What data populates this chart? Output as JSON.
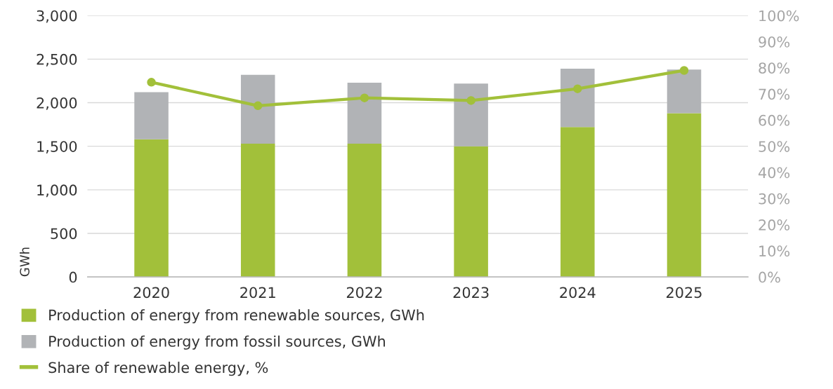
{
  "chart_data": {
    "type": "bar",
    "stacked": true,
    "categories": [
      "2020",
      "2021",
      "2022",
      "2023",
      "2024",
      "2025"
    ],
    "series": [
      {
        "name": "Production of energy from renewable sources, GWh",
        "color": "#a2c03a",
        "values": [
          1580,
          1530,
          1530,
          1500,
          1720,
          1880
        ]
      },
      {
        "name": "Production of energy from fossil sources, GWh",
        "color": "#b1b3b6",
        "values": [
          540,
          790,
          700,
          720,
          670,
          500
        ]
      },
      {
        "name": "Share of renewable energy, %",
        "type": "line",
        "axis": "y2",
        "color": "#a2c03a",
        "marker": "circle",
        "values": [
          74.5,
          65.5,
          68.5,
          67.5,
          72,
          79
        ]
      }
    ],
    "ylabel": "GWh",
    "ylim": [
      0,
      3000
    ],
    "yticks": [
      {
        "value": 0,
        "label": "0"
      },
      {
        "value": 500,
        "label": "500"
      },
      {
        "value": 1000,
        "label": "1,000"
      },
      {
        "value": 1500,
        "label": "1,500"
      },
      {
        "value": 2000,
        "label": "2,000"
      },
      {
        "value": 2500,
        "label": "2,500"
      },
      {
        "value": 3000,
        "label": "3,000"
      }
    ],
    "y2lim": [
      0,
      100
    ],
    "y2ticks": [
      {
        "value": 0,
        "label": "0%"
      },
      {
        "value": 10,
        "label": "10%"
      },
      {
        "value": 20,
        "label": "20%"
      },
      {
        "value": 30,
        "label": "30%"
      },
      {
        "value": 40,
        "label": "40%"
      },
      {
        "value": 50,
        "label": "50%"
      },
      {
        "value": 60,
        "label": "60%"
      },
      {
        "value": 70,
        "label": "70%"
      },
      {
        "value": 80,
        "label": "80%"
      },
      {
        "value": 90,
        "label": "90%"
      },
      {
        "value": 100,
        "label": "100%"
      }
    ],
    "grid": "y",
    "legend": "bottom left"
  }
}
